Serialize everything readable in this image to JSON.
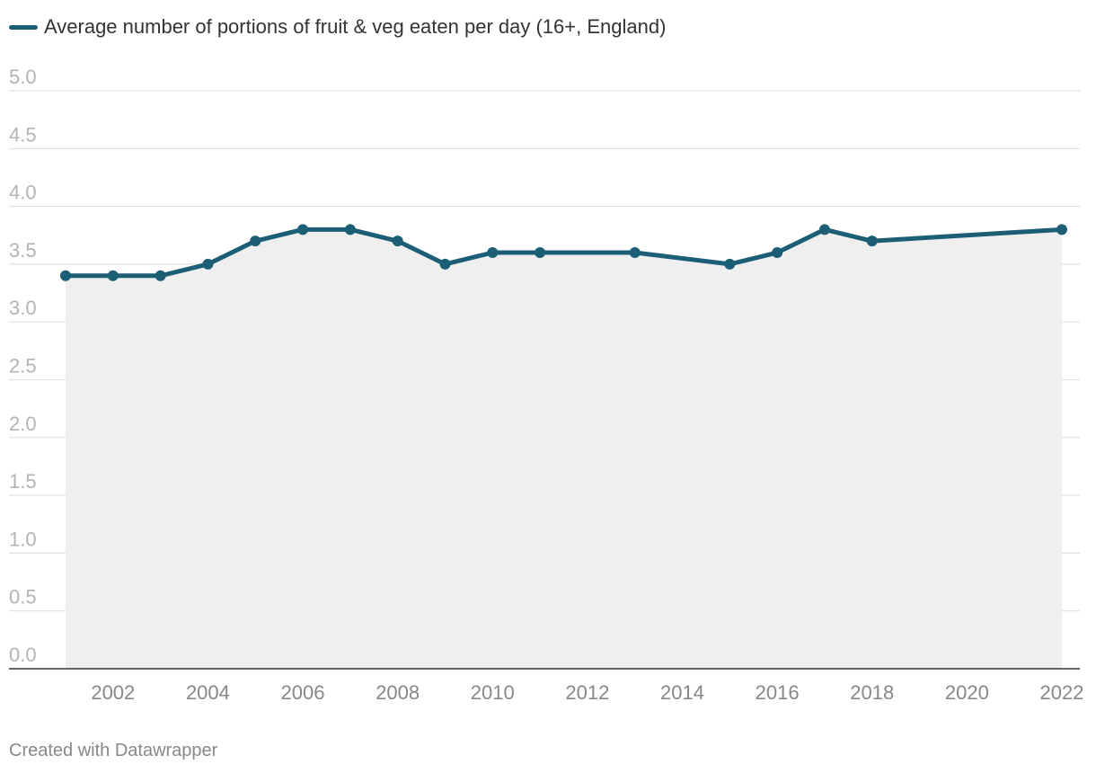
{
  "chart_data": {
    "type": "area",
    "series": [
      {
        "name": "Average number of portions of fruit & veg eaten per day (16+, England)",
        "color": "#1b5e75",
        "x": [
          2001,
          2002,
          2003,
          2004,
          2005,
          2006,
          2007,
          2008,
          2009,
          2010,
          2011,
          2013,
          2015,
          2016,
          2017,
          2018,
          2022
        ],
        "values": [
          3.4,
          3.4,
          3.4,
          3.5,
          3.7,
          3.8,
          3.8,
          3.7,
          3.5,
          3.6,
          3.6,
          3.6,
          3.5,
          3.6,
          3.8,
          3.7,
          3.8
        ]
      }
    ],
    "ylim": [
      0,
      5
    ],
    "y_ticks": [
      "0.0",
      "0.5",
      "1.0",
      "1.5",
      "2.0",
      "2.5",
      "3.0",
      "3.5",
      "4.0",
      "4.5",
      "5.0"
    ],
    "x_ticks": [
      "2002",
      "2004",
      "2006",
      "2008",
      "2010",
      "2012",
      "2014",
      "2016",
      "2018",
      "2020",
      "2022"
    ],
    "area_color": "#efefef",
    "grid": true,
    "legend_position": "top-left"
  },
  "footer": "Created with Datawrapper"
}
